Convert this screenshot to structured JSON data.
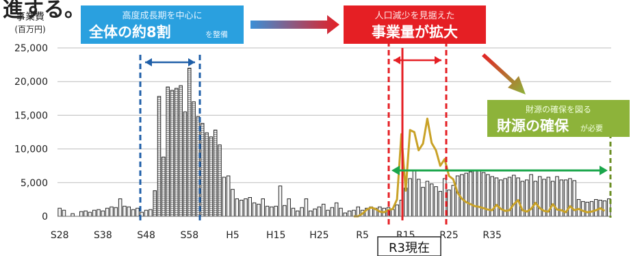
{
  "header_fragment": "進する。",
  "colors": {
    "bar_fill": "#f2f2f2",
    "bar_stroke": "#111111",
    "dense_bar_fill": "#2e5c8a",
    "line_color": "#c9a227",
    "blue_banner": "#2aa0df",
    "red_banner": "#e51f24",
    "green_banner": "#8db33a",
    "blue_marker": "#1f5fa8",
    "red_marker": "#e51f24",
    "green_arrow": "#1aa64b"
  },
  "banners": {
    "blue": {
      "line1": "高度成長期を中心に",
      "line2": "全体の約8割",
      "line2_small": "を整備"
    },
    "red": {
      "line1": "人口減少を見据えた",
      "line2": "事業量が拡大"
    },
    "green": {
      "line1": "財源の確保を図る",
      "line2": "財源の確保",
      "line2_small": "が必要"
    }
  },
  "current_label": "R3現在",
  "chart_data": {
    "type": "bar",
    "ylabel": "事業費\n(百万円)",
    "ylim": [
      0,
      25000
    ],
    "yticks": [
      "25,000",
      "20,000",
      "15,000",
      "10,000",
      "5,000",
      "0"
    ],
    "xticks": [
      "S28",
      "S38",
      "S48",
      "S58",
      "H5",
      "H15",
      "H25",
      "R5",
      "R15",
      "R25",
      "R35"
    ],
    "x_range": [
      "S28",
      "R41"
    ],
    "series": [
      {
        "kind": "bar",
        "values": [
          1200,
          900,
          0,
          400,
          0,
          700,
          800,
          600,
          900,
          1000,
          800,
          1200,
          1400,
          1300,
          2600,
          1500,
          1400,
          1000,
          1200,
          600,
          900,
          1000,
          3800,
          17800,
          8800,
          19200,
          18700,
          19000,
          19400,
          15500,
          22000,
          17000,
          14800,
          13800,
          12400,
          11800,
          12800,
          10600,
          5800,
          6000,
          4000,
          2600,
          2400,
          2600,
          2800,
          2000,
          1800,
          2600,
          1500,
          1400,
          1500,
          4500,
          1600,
          2600,
          1200,
          800,
          1300,
          2600,
          800,
          1100,
          1400,
          1800,
          900,
          1300,
          2000,
          1200,
          500,
          800,
          900,
          1400,
          900,
          1200,
          1400,
          1200,
          1400,
          1200,
          1300,
          1000,
          1700,
          2400,
          4200,
          5600,
          6800,
          5500,
          4300,
          5200,
          4800,
          4400,
          3700,
          5600,
          3900,
          4600,
          6000,
          6200,
          6400,
          6600,
          6900,
          6800,
          6500,
          6200,
          5900,
          5700,
          5400,
          5600,
          5800,
          6100,
          5700,
          5200,
          5400,
          6200,
          5200,
          5900,
          5500,
          5800,
          5200,
          5900,
          5400,
          5400,
          5600,
          5300,
          2500,
          2200,
          2100,
          2200,
          2500,
          2400,
          2300,
          2600
        ]
      },
      {
        "kind": "line",
        "values": [
          0,
          0,
          0,
          0,
          0,
          0,
          0,
          0,
          0,
          0,
          0,
          0,
          0,
          0,
          0,
          0,
          0,
          0,
          0,
          0,
          0,
          0,
          0,
          0,
          0,
          0,
          0,
          0,
          0,
          0,
          0,
          0,
          0,
          0,
          0,
          0,
          0,
          0,
          0,
          0,
          0,
          0,
          0,
          0,
          0,
          0,
          0,
          0,
          0,
          0,
          0,
          0,
          0,
          0,
          0,
          0,
          0,
          0,
          0,
          0,
          0,
          0,
          0,
          0,
          0,
          0,
          0,
          0,
          0,
          0,
          400,
          1000,
          1300,
          1100,
          700,
          600,
          900,
          1100,
          2500,
          12200,
          3800,
          12800,
          12500,
          9800,
          10800,
          14500,
          10900,
          9800,
          7500,
          8500,
          6000,
          5500,
          3500,
          2600,
          2100,
          1800,
          1500,
          1400,
          1200,
          1000,
          900,
          1700,
          1100,
          800,
          900,
          1800,
          2400,
          900,
          700,
          1100,
          2000,
          1200,
          800,
          700,
          1800,
          1000,
          900,
          600,
          1500,
          900,
          1100,
          800,
          600,
          700,
          900,
          1200,
          800
        ]
      }
    ],
    "annotations": [
      "R3現在"
    ]
  }
}
